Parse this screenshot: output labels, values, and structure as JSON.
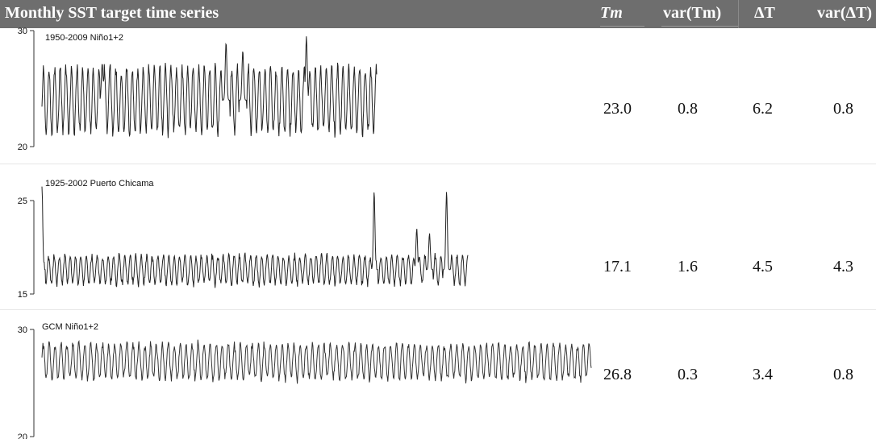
{
  "header": {
    "series_label": "Monthly SST target time series",
    "col_tm": "Tm",
    "col_var_tm": "var(Tm)",
    "col_dt": "ΔT",
    "col_var_dt": "var(ΔT)"
  },
  "chart_data": [
    {
      "type": "line",
      "title": "1950-2009 Niño1+2",
      "ylim": [
        20,
        30
      ],
      "yticks": [
        "30",
        "20"
      ],
      "x_start": 1950,
      "x_end": 2009,
      "color": "#222222",
      "amplitude": 2.9,
      "mean": 24.0,
      "peaks": [
        {
          "t": 0.55,
          "v": 29.0
        },
        {
          "t": 0.79,
          "v": 29.5
        },
        {
          "t": 0.6,
          "v": 28.3
        },
        {
          "t": 0.18,
          "v": 27.2
        }
      ],
      "table": {
        "tm": "23.0",
        "var_tm": "0.8",
        "dt": "6.2",
        "var_dt": "0.8"
      }
    },
    {
      "type": "line",
      "title": "1925-2002 Puerto Chicama",
      "ylim": [
        15,
        25
      ],
      "yticks": [
        "25",
        "15"
      ],
      "x_start": 1925,
      "x_end": 2002,
      "color": "#222222",
      "amplitude": 1.6,
      "mean": 17.6,
      "peaks": [
        {
          "t": 0.0,
          "v": 26.5
        },
        {
          "t": 0.78,
          "v": 26.0
        },
        {
          "t": 0.95,
          "v": 26.0
        },
        {
          "t": 0.88,
          "v": 22.0
        },
        {
          "t": 0.91,
          "v": 21.5
        }
      ],
      "table": {
        "tm": "17.1",
        "var_tm": "1.6",
        "dt": "4.5",
        "var_dt": "4.3"
      }
    },
    {
      "type": "line",
      "title": "GCM Niño1+2",
      "ylim": [
        20,
        30
      ],
      "yticks": [
        "30",
        "20"
      ],
      "color": "#333333",
      "amplitude": 1.7,
      "mean": 27.0,
      "peaks": [],
      "table": {
        "tm": "26.8",
        "var_tm": "0.3",
        "dt": "3.4",
        "var_dt": "0.8"
      }
    }
  ]
}
